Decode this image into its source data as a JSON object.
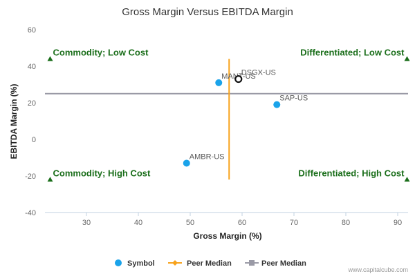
{
  "colors": {
    "symbol": "#1aa3ea",
    "peer_median_x": "#f7a21b",
    "peer_median_y": "#9a9aa6",
    "quadrant": "#1a6e1a",
    "axis": "#c0d0e0",
    "highlight_ring": "#111111"
  },
  "chart_data": {
    "type": "scatter",
    "title": "Gross Margin Versus EBITDA Margin",
    "xlabel": "Gross Margin (%)",
    "ylabel": "EBITDA Margin (%)",
    "xlim": [
      22,
      92
    ],
    "ylim": [
      -40,
      60
    ],
    "x_ticks": [
      "30",
      "40",
      "50",
      "60",
      "70",
      "80",
      "90"
    ],
    "y_ticks": [
      "60",
      "40",
      "20",
      "0",
      "-20",
      "-40"
    ],
    "x_tick_values": [
      30,
      40,
      50,
      60,
      70,
      80,
      90
    ],
    "y_tick_values": [
      60,
      40,
      20,
      0,
      -20,
      -40
    ],
    "grid": false,
    "series": [
      {
        "name": "Symbol",
        "points": [
          {
            "label": "MANT-US",
            "x": 55.5,
            "y": 31
          },
          {
            "label": "DSGX-US",
            "x": 59.3,
            "y": 33,
            "highlight": true
          },
          {
            "label": "SAP-US",
            "x": 66.7,
            "y": 19
          },
          {
            "label": "AMBR-US",
            "x": 49.3,
            "y": -13
          }
        ]
      },
      {
        "name": "Peer Median",
        "orientation": "vertical",
        "x": 57.5,
        "y_range": [
          -22,
          44
        ]
      },
      {
        "name": "Peer Median",
        "orientation": "horizontal",
        "y": 25,
        "x_range": [
          22,
          92
        ]
      }
    ],
    "quadrants": [
      {
        "label": "Commodity; Low Cost",
        "x": 23,
        "y": 44,
        "align": "start",
        "position": "top-left"
      },
      {
        "label": "Differentiated; Low Cost",
        "x": 91.8,
        "y": 44,
        "align": "end",
        "position": "top-right"
      },
      {
        "label": "Commodity; High Cost",
        "x": 23,
        "y": -22,
        "align": "start",
        "position": "bottom-left"
      },
      {
        "label": "Differentiated; High Cost",
        "x": 91.8,
        "y": -22,
        "align": "end",
        "position": "bottom-right"
      }
    ],
    "legend": {
      "position": "bottom-center",
      "items": [
        "Symbol",
        "Peer Median",
        "Peer Median"
      ]
    }
  },
  "credit": "www.capitalcube.com"
}
